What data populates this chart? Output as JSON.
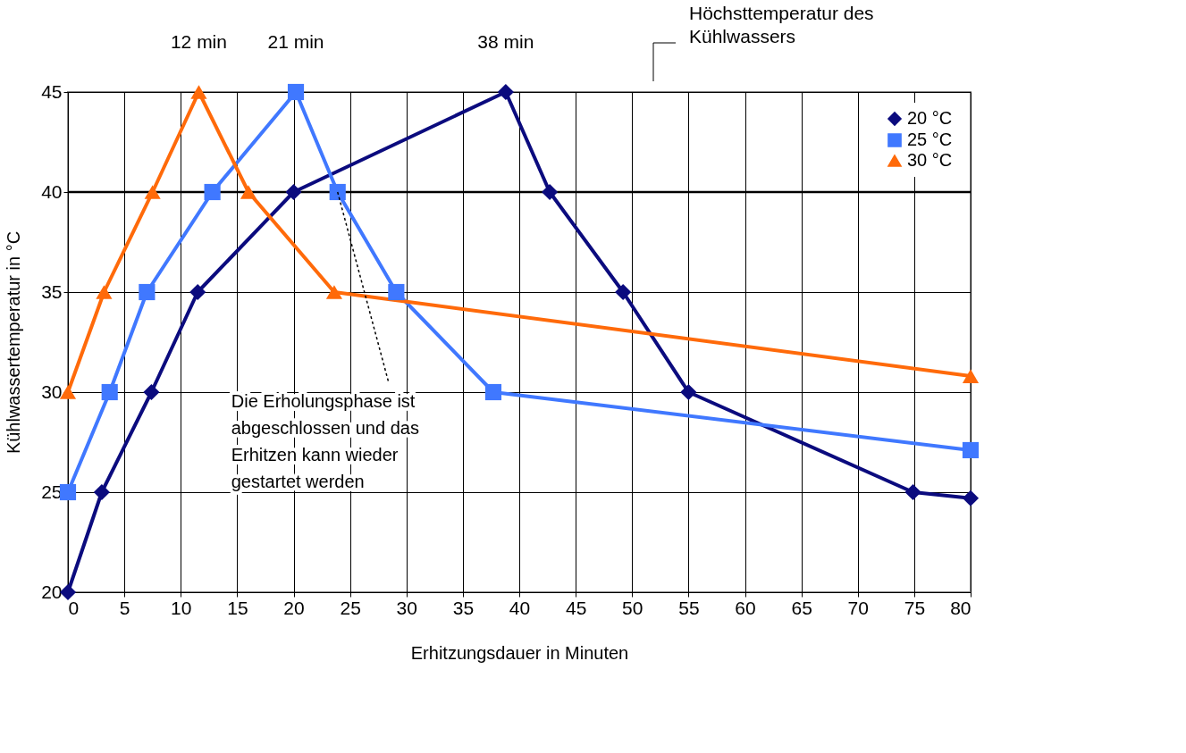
{
  "chart_data": {
    "type": "line",
    "xlabel": "Erhitzungsdauer in Minuten",
    "ylabel": "Kühlwassertemperatur in °C",
    "xlim": [
      0,
      80
    ],
    "ylim": [
      20,
      45
    ],
    "xticks": [
      0,
      5,
      10,
      15,
      20,
      25,
      30,
      35,
      40,
      45,
      50,
      55,
      60,
      65,
      70,
      75,
      80
    ],
    "yticks": [
      20,
      25,
      30,
      35,
      40,
      45
    ],
    "grid": true,
    "legend": "top right",
    "series": [
      {
        "name": "20 °C",
        "color": "#0b0b7e",
        "marker": "diamond",
        "x": [
          0,
          3,
          7.4,
          11.5,
          20,
          38.8,
          42.7,
          49.2,
          55,
          74.9,
          80
        ],
        "values": [
          20,
          25,
          30,
          35,
          40,
          45,
          40,
          35,
          30,
          25,
          24.7
        ]
      },
      {
        "name": "25 °C",
        "color": "#4078ff",
        "marker": "square",
        "x": [
          0,
          3.7,
          7,
          12.8,
          20.2,
          23.9,
          29.1,
          37.7,
          80
        ],
        "values": [
          25,
          30,
          35,
          40,
          45,
          40,
          35,
          30,
          27.1
        ]
      },
      {
        "name": "30 °C",
        "color": "#ff6a0a",
        "marker": "triangle",
        "x": [
          0,
          3.2,
          7.5,
          11.6,
          16,
          23.6,
          80
        ],
        "values": [
          30,
          35,
          40,
          45,
          40,
          35,
          30.8
        ]
      }
    ],
    "ref_lines": [
      {
        "axis": "y",
        "value": 40,
        "color": "#000000"
      }
    ],
    "annotations": [
      "Höchsttemperatur des Kühlwassers",
      {
        "text": "Die Erholungsphase ist abgeschlossen und das Erhitzen kann wieder gestartet werden",
        "x": 23.9,
        "y": 40
      },
      {
        "text": "12 min",
        "x": 11.6,
        "y": 45
      },
      {
        "text": "21 min",
        "x": 20.2,
        "y": 45
      },
      {
        "text": "38 min",
        "x": 38.8,
        "y": 45
      }
    ]
  }
}
